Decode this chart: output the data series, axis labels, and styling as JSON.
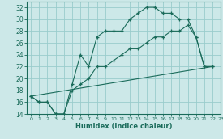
{
  "xlabel": "Humidex (Indice chaleur)",
  "bg_color": "#cce8e8",
  "grid_color": "#99cccc",
  "line_color": "#1a6b5a",
  "xlim": [
    -0.5,
    23
  ],
  "ylim": [
    14,
    33
  ],
  "xticks": [
    0,
    1,
    2,
    3,
    4,
    5,
    6,
    7,
    8,
    9,
    10,
    11,
    12,
    13,
    14,
    15,
    16,
    17,
    18,
    19,
    20,
    21,
    22,
    23
  ],
  "yticks": [
    14,
    16,
    18,
    20,
    22,
    24,
    26,
    28,
    30,
    32
  ],
  "line1_x": [
    0,
    1,
    2,
    3,
    4,
    5,
    6,
    7,
    8,
    9,
    10,
    11,
    12,
    13,
    14,
    15,
    16,
    17,
    18,
    19,
    20,
    21,
    22
  ],
  "line1_y": [
    17,
    16,
    16,
    14,
    14,
    19,
    24,
    22,
    27,
    28,
    28,
    28,
    30,
    31,
    32,
    32,
    31,
    31,
    30,
    30,
    27,
    22,
    22
  ],
  "line2_x": [
    0,
    1,
    2,
    3,
    4,
    5,
    6,
    7,
    8,
    9,
    10,
    11,
    12,
    13,
    14,
    15,
    16,
    17,
    18,
    19,
    20,
    21,
    22
  ],
  "line2_y": [
    17,
    16,
    16,
    14,
    14,
    18,
    19,
    20,
    22,
    22,
    23,
    24,
    25,
    25,
    26,
    27,
    27,
    28,
    28,
    29,
    27,
    22,
    22
  ],
  "line3_x": [
    0,
    22
  ],
  "line3_y": [
    17,
    22
  ]
}
